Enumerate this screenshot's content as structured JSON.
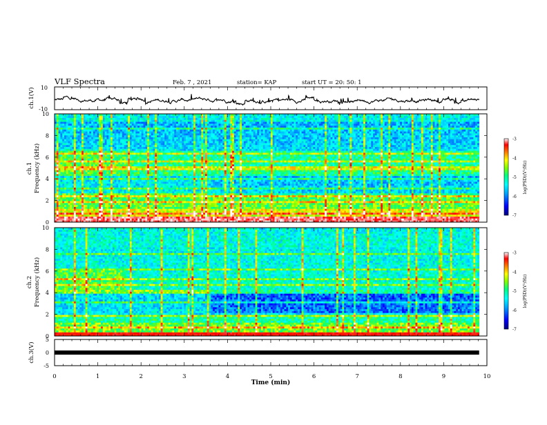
{
  "header": {
    "title": "VLF Spectra",
    "date": "Feb. 7 , 2021",
    "station": "station= KAP",
    "start": "start  UT  =   20: 50: 1"
  },
  "chart_data": [
    {
      "type": "line",
      "ylabel": "ch.1(V)",
      "ylim": [
        -10,
        10
      ],
      "yticks": [
        "10",
        "-10"
      ],
      "x_range_min": [
        0,
        9.82
      ],
      "description_of_trace": "wideband waveform amplitude, roughly -5 to 2 V"
    },
    {
      "type": "heatmap",
      "ylabel_lines": [
        "ch.1",
        "Frequency (kHz)"
      ],
      "ylim": [
        0,
        10
      ],
      "yticks": [
        "0",
        "2",
        "4",
        "6",
        "8",
        "10"
      ],
      "colorbar": {
        "label": "log(PSD)(V²/Hz)",
        "ticks": [
          "-3",
          "-4",
          "-5",
          "-6",
          "-7"
        ],
        "range": [
          -7,
          -3
        ],
        "colors": [
          "#000080",
          "#0000ff",
          "#00a0ff",
          "#00ffff",
          "#00ff80",
          "#80ff00",
          "#ffff00",
          "#ff8000",
          "#ff0000",
          "#ffffff"
        ]
      },
      "regime_change_min": [
        1.65,
        3.6
      ]
    },
    {
      "type": "heatmap",
      "ylabel_lines": [
        "ch.2",
        "Frequency (kHz)"
      ],
      "ylim": [
        0,
        10
      ],
      "yticks": [
        "0",
        "2",
        "4",
        "6",
        "8",
        "10"
      ],
      "colorbar": {
        "label": "log(PSD)(V²/Hz)",
        "ticks": [
          "-3",
          "-4",
          "-5",
          "-6",
          "-7"
        ],
        "range": [
          -7,
          -3
        ]
      },
      "regime_change_min": [
        1.65,
        3.6
      ]
    },
    {
      "type": "line",
      "ylabel": "ch.3(V)",
      "ylim": [
        -5,
        5
      ],
      "yticks": [
        "5",
        "0",
        "-5"
      ],
      "value_constant": 0
    }
  ],
  "xaxis": {
    "label": "Time (min)",
    "ticks": [
      "0",
      "1",
      "2",
      "3",
      "4",
      "5",
      "6",
      "7",
      "8",
      "9",
      "10"
    ],
    "range": [
      0,
      10
    ]
  }
}
